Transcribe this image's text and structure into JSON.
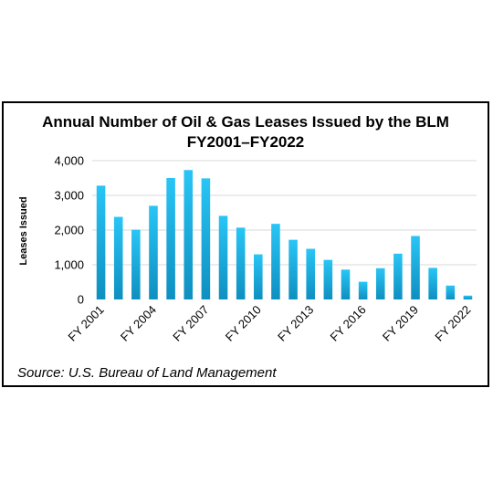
{
  "chart_data": {
    "type": "bar",
    "title_line1": "Annual Number of Oil & Gas Leases Issued by the BLM",
    "title_line2": "FY2001–FY2022",
    "xlabel": "",
    "ylabel": "Leases Issued",
    "ylim": [
      0,
      4000
    ],
    "yticks": [
      0,
      1000,
      2000,
      3000,
      4000
    ],
    "ytick_labels": [
      "0",
      "1,000",
      "2,000",
      "3,000",
      "4,000"
    ],
    "categories": [
      "FY 2001",
      "FY 2002",
      "FY 2003",
      "FY 2004",
      "FY 2005",
      "FY 2006",
      "FY 2007",
      "FY 2008",
      "FY 2009",
      "FY 2010",
      "FY 2011",
      "FY 2012",
      "FY 2013",
      "FY 2014",
      "FY 2015",
      "FY 2016",
      "FY 2017",
      "FY 2018",
      "FY 2019",
      "FY 2020",
      "FY 2021",
      "FY 2022"
    ],
    "shown_category_labels": [
      "FY 2001",
      "FY 2004",
      "FY 2007",
      "FY 2010",
      "FY 2013",
      "FY 2016",
      "FY 2019",
      "FY 2022"
    ],
    "values": [
      3280,
      2380,
      2010,
      2700,
      3500,
      3730,
      3490,
      2410,
      2070,
      1300,
      2180,
      1720,
      1460,
      1140,
      860,
      510,
      900,
      1320,
      1830,
      910,
      400,
      110
    ],
    "grid": true,
    "legend": "none",
    "bar_color_top": "#29c5f6",
    "bar_color_bottom": "#0e8fc0",
    "source": "Source: U.S. Bureau of Land Management"
  }
}
